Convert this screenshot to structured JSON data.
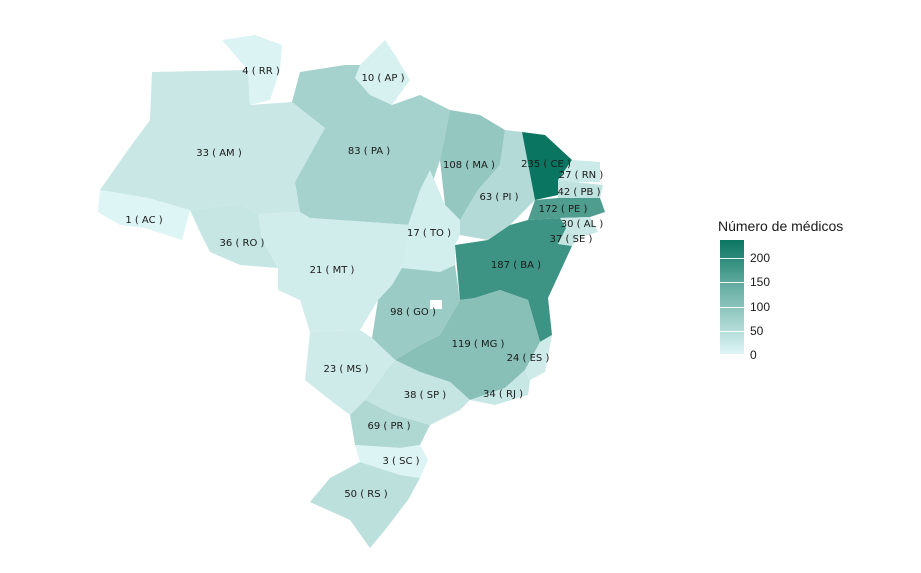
{
  "legend": {
    "title": "Número de médicos",
    "ticks": [
      "200",
      "150",
      "100",
      "50",
      "0"
    ],
    "max": 235
  },
  "states": [
    {
      "code": "RR",
      "value": 4,
      "label": "4 ( RR )"
    },
    {
      "code": "AP",
      "value": 10,
      "label": "10 ( AP )"
    },
    {
      "code": "AM",
      "value": 33,
      "label": "33 ( AM )"
    },
    {
      "code": "PA",
      "value": 83,
      "label": "83 ( PA )"
    },
    {
      "code": "MA",
      "value": 108,
      "label": "108 ( MA )"
    },
    {
      "code": "CE",
      "value": 235,
      "label": "235 ( CE )"
    },
    {
      "code": "RN",
      "value": 27,
      "label": "27 ( RN )"
    },
    {
      "code": "PB",
      "value": 42,
      "label": "42 ( PB )"
    },
    {
      "code": "PI",
      "value": 63,
      "label": "63 ( PI )"
    },
    {
      "code": "PE",
      "value": 172,
      "label": "172 ( PE )"
    },
    {
      "code": "AL",
      "value": 30,
      "label": "30 ( AL )"
    },
    {
      "code": "AC",
      "value": 1,
      "label": "1 ( AC )"
    },
    {
      "code": "TO",
      "value": 17,
      "label": "17 ( TO )"
    },
    {
      "code": "SE",
      "value": 37,
      "label": "37 ( SE )"
    },
    {
      "code": "RO",
      "value": 36,
      "label": "36 ( RO )"
    },
    {
      "code": "BA",
      "value": 187,
      "label": "187 ( BA )"
    },
    {
      "code": "MT",
      "value": 21,
      "label": "21 ( MT )"
    },
    {
      "code": "GO",
      "value": 98,
      "label": "98 ( GO )"
    },
    {
      "code": "MG",
      "value": 119,
      "label": "119 ( MG )"
    },
    {
      "code": "ES",
      "value": 24,
      "label": "24 ( ES )"
    },
    {
      "code": "MS",
      "value": 23,
      "label": "23 ( MS )"
    },
    {
      "code": "SP",
      "value": 38,
      "label": "38 ( SP )"
    },
    {
      "code": "RJ",
      "value": 34,
      "label": "34 ( RJ )"
    },
    {
      "code": "PR",
      "value": 69,
      "label": "69 ( PR )"
    },
    {
      "code": "SC",
      "value": 3,
      "label": "3 ( SC )"
    },
    {
      "code": "RS",
      "value": 50,
      "label": "50 ( RS )"
    }
  ]
}
